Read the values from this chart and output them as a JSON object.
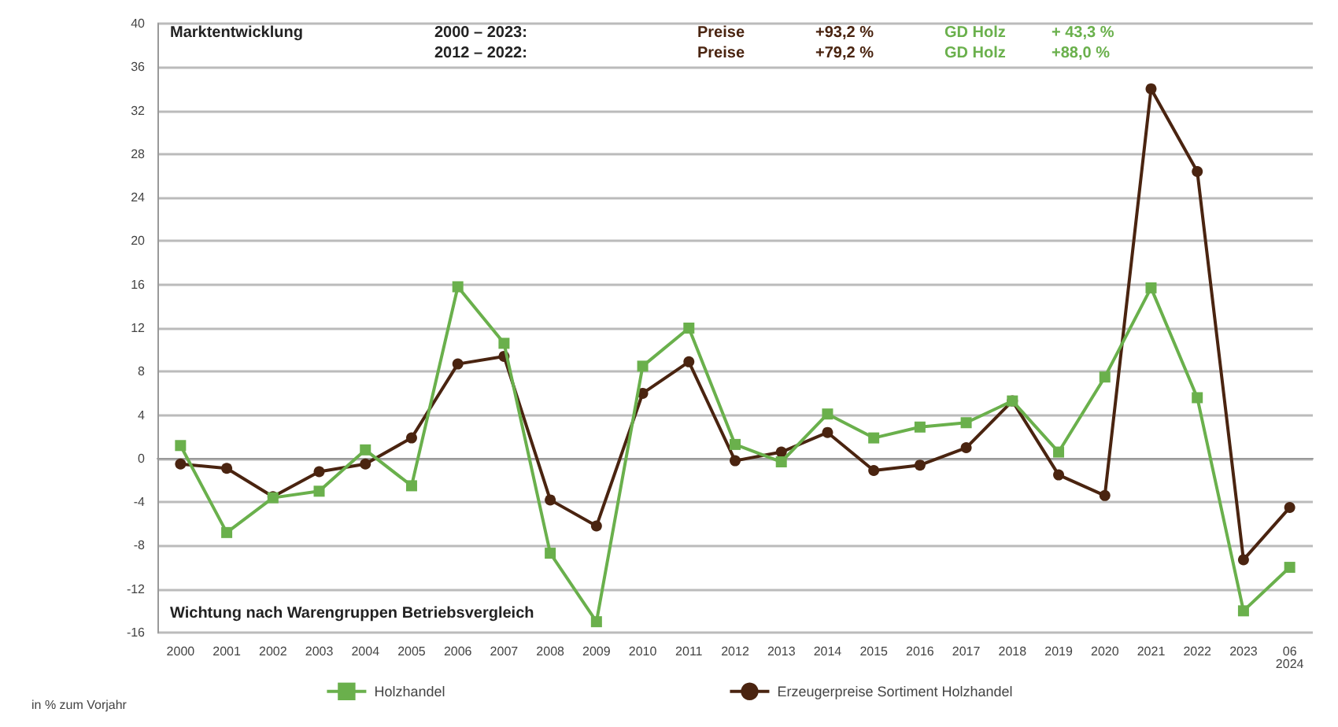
{
  "chart_data": {
    "type": "line",
    "categories": [
      "2000",
      "2001",
      "2002",
      "2003",
      "2004",
      "2005",
      "2006",
      "2007",
      "2008",
      "2009",
      "2010",
      "2011",
      "2012",
      "2013",
      "2014",
      "2015",
      "2016",
      "2017",
      "2018",
      "2019",
      "2020",
      "2021",
      "2022",
      "2023",
      "06\n2024"
    ],
    "series": [
      {
        "name": "Holzhandel",
        "color": "#6ab04c",
        "marker": "square",
        "values": [
          1.2,
          -6.8,
          -3.6,
          -3.0,
          0.8,
          -2.5,
          15.8,
          10.6,
          -8.7,
          -15.0,
          8.5,
          12.0,
          1.3,
          -0.3,
          4.1,
          1.9,
          2.9,
          3.3,
          5.3,
          0.6,
          7.5,
          15.7,
          5.6,
          -14.0,
          -10.0
        ]
      },
      {
        "name": "Erzeugerpreise Sortiment Holzhandel",
        "color": "#4a2410",
        "marker": "circle",
        "values": [
          -0.5,
          -0.9,
          -3.5,
          -1.2,
          -0.5,
          1.9,
          8.7,
          9.4,
          -3.8,
          -6.2,
          6.0,
          8.9,
          -0.2,
          0.6,
          2.4,
          -1.1,
          -0.6,
          1.0,
          5.3,
          -1.5,
          -3.4,
          34.0,
          26.4,
          -9.3,
          -4.5
        ]
      }
    ],
    "ylim": [
      -16,
      40
    ],
    "yticks": [
      -16,
      -12,
      -8,
      -4,
      0,
      4,
      8,
      12,
      16,
      20,
      24,
      28,
      32,
      36,
      40
    ],
    "grid": "y",
    "legend": "bottom",
    "line_style": "solid",
    "annotations": [
      "Marktentwicklung",
      "2000 – 2023:",
      "Preise",
      "+93,2 %",
      "GD Holz",
      "+ 43,3 %",
      "2012 – 2022:",
      "Preise",
      "+79,2 %",
      "GD Holz",
      "+88,0 %",
      "Wichtung nach Warengruppen Betriebsvergleich",
      "in % zum Vorjahr"
    ]
  }
}
